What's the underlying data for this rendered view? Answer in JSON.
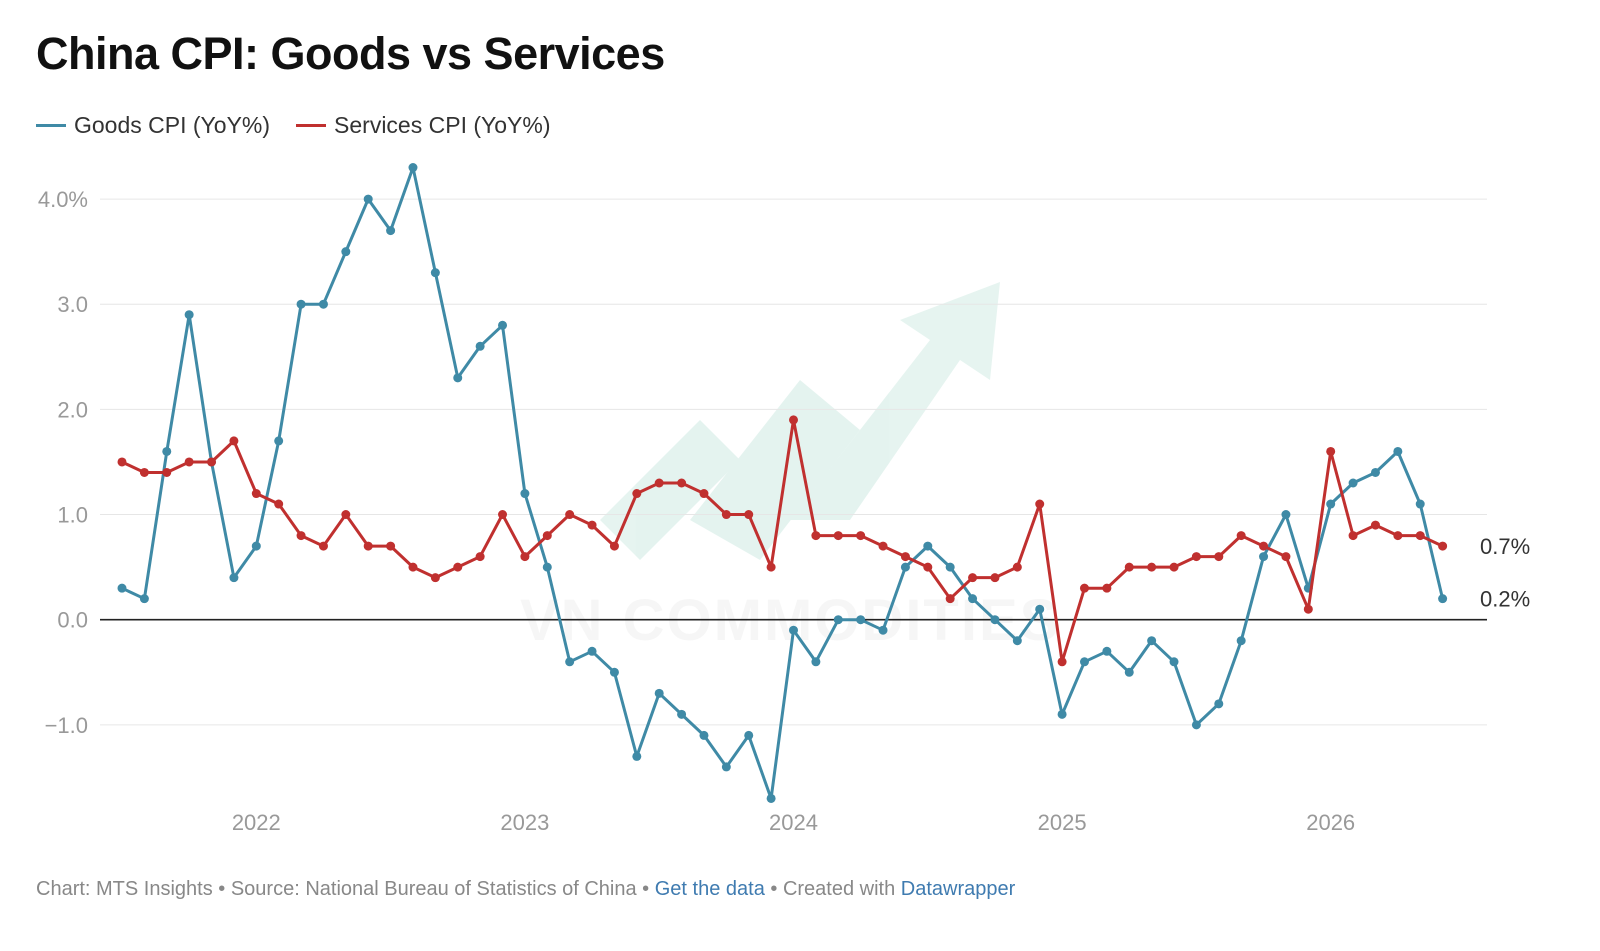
{
  "chart_data": {
    "type": "line",
    "title": "China CPI: Goods vs Services",
    "xlabel": "",
    "ylabel": "",
    "x_start": "2021-07",
    "x_end": "2026-07",
    "x_ticks": [
      "2022",
      "2023",
      "2024",
      "2025",
      "2026"
    ],
    "y_ticks": [
      {
        "value": 4.0,
        "label": "4.0%"
      },
      {
        "value": 3.0,
        "label": "3.0"
      },
      {
        "value": 2.0,
        "label": "2.0"
      },
      {
        "value": 1.0,
        "label": "1.0"
      },
      {
        "value": 0.0,
        "label": "0.0"
      },
      {
        "value": -1.0,
        "label": "−1.0"
      }
    ],
    "ylim": [
      -1.8,
      4.4
    ],
    "grid": true,
    "legend_position": "top-left",
    "series": [
      {
        "name": "Goods CPI (YoY%)",
        "color": "#3f8aa6",
        "end_label": "0.2%",
        "values": [
          0.3,
          0.2,
          1.6,
          2.9,
          1.5,
          0.4,
          0.7,
          1.7,
          3.0,
          3.0,
          3.5,
          4.0,
          3.7,
          4.3,
          3.3,
          2.3,
          2.6,
          2.8,
          1.2,
          0.5,
          -0.4,
          -0.3,
          -0.5,
          -1.3,
          -0.7,
          -0.9,
          -1.1,
          -1.4,
          -1.1,
          -1.7,
          -0.1,
          -0.4,
          0.0,
          0.0,
          -0.1,
          0.5,
          0.7,
          0.5,
          0.2,
          0.0,
          -0.2,
          0.1,
          -0.9,
          -0.4,
          -0.3,
          -0.5,
          -0.2,
          -0.4,
          -1.0,
          -0.8,
          -0.2,
          0.6,
          1.0,
          0.3,
          1.1,
          1.3,
          1.4,
          1.6,
          1.1,
          0.2
        ]
      },
      {
        "name": "Services CPI (YoY%)",
        "color": "#c0302f",
        "end_label": "0.7%",
        "values": [
          1.5,
          1.4,
          1.4,
          1.5,
          1.5,
          1.7,
          1.2,
          1.1,
          0.8,
          0.7,
          1.0,
          0.7,
          0.7,
          0.5,
          0.4,
          0.5,
          0.6,
          1.0,
          0.6,
          0.8,
          1.0,
          0.9,
          0.7,
          1.2,
          1.3,
          1.3,
          1.2,
          1.0,
          1.0,
          0.5,
          1.9,
          0.8,
          0.8,
          0.8,
          0.7,
          0.6,
          0.5,
          0.2,
          0.4,
          0.4,
          0.5,
          1.1,
          -0.4,
          0.3,
          0.3,
          0.5,
          0.5,
          0.5,
          0.6,
          0.6,
          0.8,
          0.7,
          0.6,
          0.1,
          1.6,
          0.8,
          0.9,
          0.8,
          0.8,
          0.7
        ]
      }
    ]
  },
  "watermark": "VN COMMODITIES",
  "footer": {
    "chart_by": "Chart: MTS Insights",
    "sep1": " • ",
    "source": "Source: National Bureau of Statistics of China",
    "sep2": " • ",
    "get_data": "Get the data",
    "sep3": " • ",
    "created_with": "Created with ",
    "tool": "Datawrapper"
  }
}
